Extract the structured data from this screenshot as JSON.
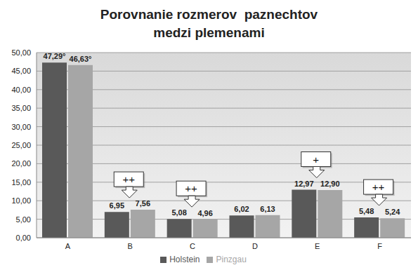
{
  "chart_data": {
    "type": "bar",
    "title": "Porovnanie rozmerov  paznechtov medzi plemenami",
    "categories": [
      "A",
      "B",
      "C",
      "D",
      "E",
      "F"
    ],
    "series": [
      {
        "name": "Holstein",
        "color": "#595959",
        "values": [
          47.29,
          6.95,
          5.08,
          6.02,
          12.97,
          5.48
        ],
        "value_labels": [
          "47,29°",
          "6,95",
          "5,08",
          "6,02",
          "12,97",
          "5,48"
        ]
      },
      {
        "name": "Pinzgau",
        "color": "#a6a6a6",
        "values": [
          46.63,
          7.56,
          4.96,
          6.13,
          12.9,
          5.24
        ],
        "value_labels": [
          "46,63°",
          "7,56",
          "4,96",
          "6,13",
          "12,90",
          "5,24"
        ]
      }
    ],
    "ylim": [
      0,
      50
    ],
    "yticks": [
      {
        "value": 0,
        "label": "0,00"
      },
      {
        "value": 5,
        "label": "5,00"
      },
      {
        "value": 10,
        "label": "10,00"
      },
      {
        "value": 15,
        "label": "15,00"
      },
      {
        "value": 20,
        "label": "20,00"
      },
      {
        "value": 25,
        "label": "25,00"
      },
      {
        "value": 30,
        "label": "30,00"
      },
      {
        "value": 35,
        "label": "35,00"
      },
      {
        "value": 40,
        "label": "40,00"
      },
      {
        "value": 45,
        "label": "45,00"
      },
      {
        "value": 50,
        "label": "50,00"
      }
    ],
    "grid": true,
    "legend": "bottom",
    "data_labels": true,
    "annotations": [
      {
        "x": "B",
        "text": "++"
      },
      {
        "x": "C",
        "text": "++"
      },
      {
        "x": "E",
        "text": "+"
      },
      {
        "x": "F",
        "text": "++"
      }
    ]
  }
}
